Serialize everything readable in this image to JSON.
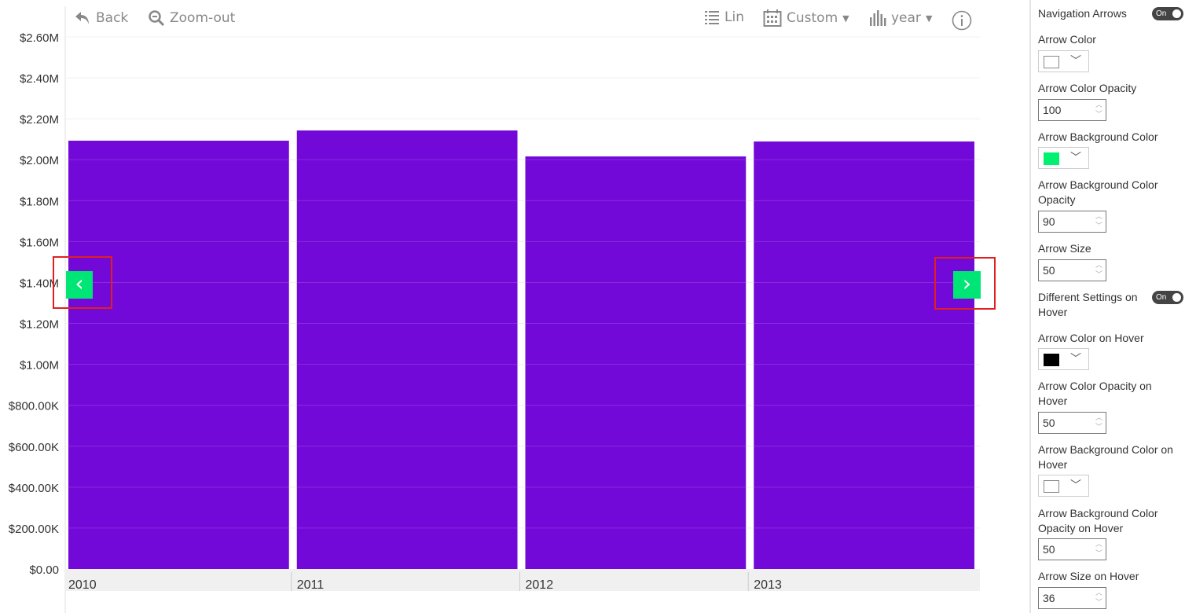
{
  "toolbar": {
    "back": "Back",
    "zoom_out": "Zoom-out",
    "scale": "Lin",
    "period": "Custom",
    "granularity": "year"
  },
  "chart_data": {
    "type": "bar",
    "categories": [
      "2010",
      "2011",
      "2012",
      "2013"
    ],
    "values": [
      2093000,
      2143000,
      2016000,
      2089000
    ],
    "ylim": [
      0,
      2600000
    ],
    "yticks": [
      "$0.00",
      "$200.00K",
      "$400.00K",
      "$600.00K",
      "$800.00K",
      "$1.00M",
      "$1.20M",
      "$1.40M",
      "$1.60M",
      "$1.80M",
      "$2.00M",
      "$2.20M",
      "$2.40M",
      "$2.60M"
    ],
    "bar_color": "#7209d8",
    "grid": true
  },
  "nav_arrows": {
    "left": "‹",
    "right": "›",
    "bg_color": "#00e676",
    "highlight_color": "#e02020"
  },
  "panel": {
    "navigation_arrows": "Navigation Arrows",
    "navigation_arrows_toggle": "On",
    "arrow_color": "Arrow Color",
    "arrow_color_value": "#ffffff",
    "arrow_color_opacity": "Arrow Color Opacity",
    "arrow_color_opacity_value": "100",
    "arrow_bg_color": "Arrow Background Color",
    "arrow_bg_color_value": "#00e676",
    "arrow_bg_opacity": "Arrow Background Color Opacity",
    "arrow_bg_opacity_value": "90",
    "arrow_size": "Arrow Size",
    "arrow_size_value": "50",
    "diff_hover": "Different Settings on Hover",
    "diff_hover_toggle": "On",
    "arrow_color_hover": "Arrow Color on Hover",
    "arrow_color_hover_value": "#000000",
    "arrow_color_opacity_hover": "Arrow Color Opacity on Hover",
    "arrow_color_opacity_hover_value": "50",
    "arrow_bg_hover": "Arrow Background Color on Hover",
    "arrow_bg_hover_value": "#ffffff",
    "arrow_bg_opacity_hover": "Arrow Background Color Opacity on Hover",
    "arrow_bg_opacity_hover_value": "50",
    "arrow_size_hover": "Arrow Size on Hover",
    "arrow_size_hover_value": "36"
  }
}
